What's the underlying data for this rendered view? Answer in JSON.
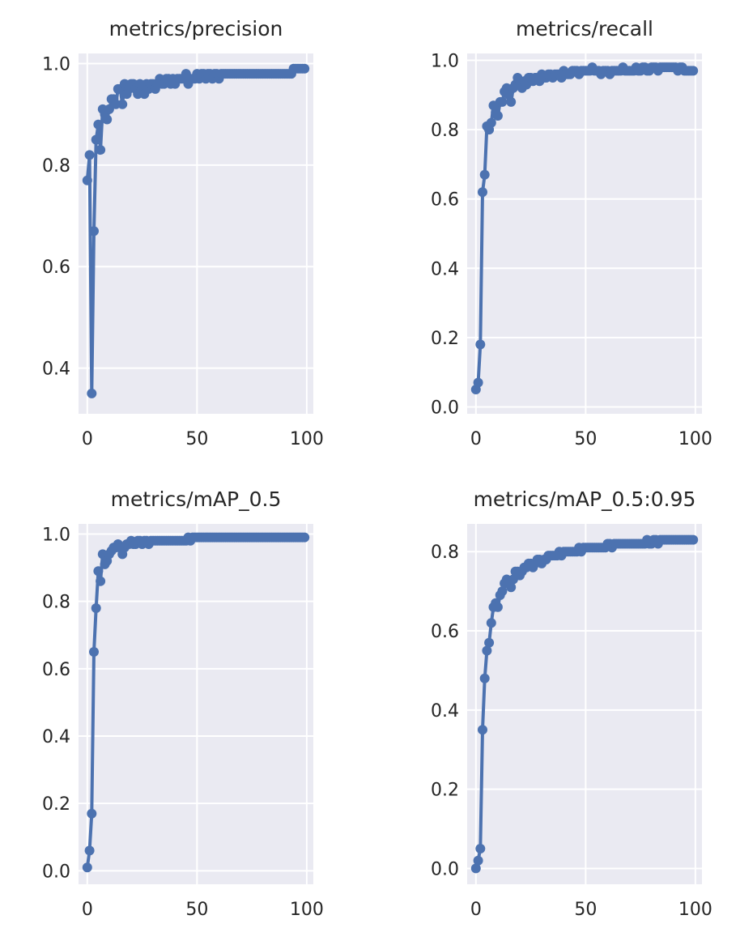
{
  "chart_data": [
    {
      "type": "line",
      "title": "metrics/precision",
      "xlabel": "",
      "ylabel": "",
      "xlim": [
        -4,
        103
      ],
      "ylim": [
        0.31,
        1.02
      ],
      "xticks": [
        0,
        50,
        100
      ],
      "yticks": [
        0.4,
        0.6,
        0.8,
        1.0
      ],
      "ytick_labels": [
        "0.4",
        "0.6",
        "0.8",
        "1.0"
      ],
      "grid": true,
      "series": [
        {
          "color": "#4c72b0",
          "x": [
            0,
            1,
            2,
            3,
            4,
            5,
            6,
            7,
            8,
            9,
            10,
            11,
            12,
            13,
            14,
            15,
            16,
            17,
            18,
            19,
            20,
            21,
            22,
            23,
            24,
            25,
            26,
            27,
            28,
            29,
            30,
            31,
            32,
            33,
            34,
            35,
            36,
            37,
            38,
            39,
            40,
            41,
            42,
            43,
            44,
            45,
            46,
            47,
            48,
            49,
            50,
            51,
            52,
            53,
            54,
            55,
            56,
            57,
            58,
            59,
            60,
            61,
            62,
            63,
            64,
            65,
            66,
            67,
            68,
            69,
            70,
            71,
            72,
            73,
            74,
            75,
            76,
            77,
            78,
            79,
            80,
            81,
            82,
            83,
            84,
            85,
            86,
            87,
            88,
            89,
            90,
            91,
            92,
            93,
            94,
            95,
            96,
            97,
            98,
            99
          ],
          "y": [
            0.77,
            0.82,
            0.35,
            0.67,
            0.85,
            0.88,
            0.83,
            0.91,
            0.9,
            0.89,
            0.91,
            0.93,
            0.93,
            0.92,
            0.95,
            0.95,
            0.92,
            0.96,
            0.94,
            0.95,
            0.96,
            0.96,
            0.95,
            0.94,
            0.96,
            0.95,
            0.94,
            0.96,
            0.95,
            0.96,
            0.96,
            0.95,
            0.96,
            0.97,
            0.96,
            0.96,
            0.97,
            0.97,
            0.96,
            0.97,
            0.96,
            0.97,
            0.97,
            0.97,
            0.97,
            0.98,
            0.96,
            0.97,
            0.97,
            0.97,
            0.98,
            0.97,
            0.98,
            0.98,
            0.97,
            0.98,
            0.98,
            0.97,
            0.98,
            0.98,
            0.97,
            0.98,
            0.98,
            0.98,
            0.98,
            0.98,
            0.98,
            0.98,
            0.98,
            0.98,
            0.98,
            0.98,
            0.98,
            0.98,
            0.98,
            0.98,
            0.98,
            0.98,
            0.98,
            0.98,
            0.98,
            0.98,
            0.98,
            0.98,
            0.98,
            0.98,
            0.98,
            0.98,
            0.98,
            0.98,
            0.98,
            0.98,
            0.98,
            0.98,
            0.99,
            0.99,
            0.99,
            0.99,
            0.99,
            0.99
          ]
        }
      ]
    },
    {
      "type": "line",
      "title": "metrics/recall",
      "xlabel": "",
      "ylabel": "",
      "xlim": [
        -4,
        103
      ],
      "ylim": [
        -0.02,
        1.02
      ],
      "xticks": [
        0,
        50,
        100
      ],
      "yticks": [
        0.0,
        0.2,
        0.4,
        0.6,
        0.8,
        1.0
      ],
      "ytick_labels": [
        "0.0",
        "0.2",
        "0.4",
        "0.6",
        "0.8",
        "1.0"
      ],
      "grid": true,
      "series": [
        {
          "color": "#4c72b0",
          "x": [
            0,
            1,
            2,
            3,
            4,
            5,
            6,
            7,
            8,
            9,
            10,
            11,
            12,
            13,
            14,
            15,
            16,
            17,
            18,
            19,
            20,
            21,
            22,
            23,
            24,
            25,
            26,
            27,
            28,
            29,
            30,
            31,
            32,
            33,
            34,
            35,
            36,
            37,
            38,
            39,
            40,
            41,
            42,
            43,
            44,
            45,
            46,
            47,
            48,
            49,
            50,
            51,
            52,
            53,
            54,
            55,
            56,
            57,
            58,
            59,
            60,
            61,
            62,
            63,
            64,
            65,
            66,
            67,
            68,
            69,
            70,
            71,
            72,
            73,
            74,
            75,
            76,
            77,
            78,
            79,
            80,
            81,
            82,
            83,
            84,
            85,
            86,
            87,
            88,
            89,
            90,
            91,
            92,
            93,
            94,
            95,
            96,
            97,
            98,
            99
          ],
          "y": [
            0.05,
            0.07,
            0.18,
            0.62,
            0.67,
            0.81,
            0.8,
            0.82,
            0.87,
            0.85,
            0.84,
            0.88,
            0.88,
            0.91,
            0.92,
            0.9,
            0.88,
            0.92,
            0.93,
            0.95,
            0.93,
            0.92,
            0.94,
            0.93,
            0.95,
            0.95,
            0.94,
            0.95,
            0.95,
            0.94,
            0.96,
            0.95,
            0.95,
            0.96,
            0.96,
            0.95,
            0.96,
            0.96,
            0.96,
            0.95,
            0.97,
            0.96,
            0.96,
            0.96,
            0.97,
            0.97,
            0.97,
            0.96,
            0.97,
            0.97,
            0.97,
            0.97,
            0.97,
            0.98,
            0.97,
            0.97,
            0.97,
            0.96,
            0.97,
            0.97,
            0.97,
            0.96,
            0.97,
            0.97,
            0.97,
            0.97,
            0.97,
            0.98,
            0.97,
            0.97,
            0.97,
            0.97,
            0.97,
            0.98,
            0.97,
            0.97,
            0.98,
            0.98,
            0.97,
            0.97,
            0.98,
            0.98,
            0.98,
            0.97,
            0.98,
            0.98,
            0.98,
            0.98,
            0.98,
            0.98,
            0.98,
            0.98,
            0.97,
            0.98,
            0.98,
            0.97,
            0.97,
            0.97,
            0.97,
            0.97
          ]
        }
      ]
    },
    {
      "type": "line",
      "title": "metrics/mAP_0.5",
      "xlabel": "",
      "ylabel": "",
      "xlim": [
        -4,
        103
      ],
      "ylim": [
        -0.04,
        1.03
      ],
      "xticks": [
        0,
        50,
        100
      ],
      "yticks": [
        0.0,
        0.2,
        0.4,
        0.6,
        0.8,
        1.0
      ],
      "ytick_labels": [
        "0.0",
        "0.2",
        "0.4",
        "0.6",
        "0.8",
        "1.0"
      ],
      "grid": true,
      "series": [
        {
          "color": "#4c72b0",
          "x": [
            0,
            1,
            2,
            3,
            4,
            5,
            6,
            7,
            8,
            9,
            10,
            11,
            12,
            13,
            14,
            15,
            16,
            17,
            18,
            19,
            20,
            21,
            22,
            23,
            24,
            25,
            26,
            27,
            28,
            29,
            30,
            31,
            32,
            33,
            34,
            35,
            36,
            37,
            38,
            39,
            40,
            41,
            42,
            43,
            44,
            45,
            46,
            47,
            48,
            49,
            50,
            51,
            52,
            53,
            54,
            55,
            56,
            57,
            58,
            59,
            60,
            61,
            62,
            63,
            64,
            65,
            66,
            67,
            68,
            69,
            70,
            71,
            72,
            73,
            74,
            75,
            76,
            77,
            78,
            79,
            80,
            81,
            82,
            83,
            84,
            85,
            86,
            87,
            88,
            89,
            90,
            91,
            92,
            93,
            94,
            95,
            96,
            97,
            98,
            99
          ],
          "y": [
            0.01,
            0.06,
            0.17,
            0.65,
            0.78,
            0.89,
            0.86,
            0.94,
            0.91,
            0.92,
            0.94,
            0.95,
            0.96,
            0.96,
            0.97,
            0.96,
            0.94,
            0.96,
            0.97,
            0.97,
            0.98,
            0.97,
            0.97,
            0.98,
            0.98,
            0.97,
            0.98,
            0.98,
            0.97,
            0.98,
            0.98,
            0.98,
            0.98,
            0.98,
            0.98,
            0.98,
            0.98,
            0.98,
            0.98,
            0.98,
            0.98,
            0.98,
            0.98,
            0.98,
            0.98,
            0.98,
            0.99,
            0.98,
            0.99,
            0.99,
            0.99,
            0.99,
            0.99,
            0.99,
            0.99,
            0.99,
            0.99,
            0.99,
            0.99,
            0.99,
            0.99,
            0.99,
            0.99,
            0.99,
            0.99,
            0.99,
            0.99,
            0.99,
            0.99,
            0.99,
            0.99,
            0.99,
            0.99,
            0.99,
            0.99,
            0.99,
            0.99,
            0.99,
            0.99,
            0.99,
            0.99,
            0.99,
            0.99,
            0.99,
            0.99,
            0.99,
            0.99,
            0.99,
            0.99,
            0.99,
            0.99,
            0.99,
            0.99,
            0.99,
            0.99,
            0.99,
            0.99,
            0.99,
            0.99,
            0.99
          ]
        }
      ]
    },
    {
      "type": "line",
      "title": "metrics/mAP_0.5:0.95",
      "xlabel": "",
      "ylabel": "",
      "xlim": [
        -4,
        103
      ],
      "ylim": [
        -0.04,
        0.87
      ],
      "xticks": [
        0,
        50,
        100
      ],
      "yticks": [
        0.0,
        0.2,
        0.4,
        0.6,
        0.8
      ],
      "ytick_labels": [
        "0.0",
        "0.2",
        "0.4",
        "0.6",
        "0.8"
      ],
      "grid": true,
      "series": [
        {
          "color": "#4c72b0",
          "x": [
            0,
            1,
            2,
            3,
            4,
            5,
            6,
            7,
            8,
            9,
            10,
            11,
            12,
            13,
            14,
            15,
            16,
            17,
            18,
            19,
            20,
            21,
            22,
            23,
            24,
            25,
            26,
            27,
            28,
            29,
            30,
            31,
            32,
            33,
            34,
            35,
            36,
            37,
            38,
            39,
            40,
            41,
            42,
            43,
            44,
            45,
            46,
            47,
            48,
            49,
            50,
            51,
            52,
            53,
            54,
            55,
            56,
            57,
            58,
            59,
            60,
            61,
            62,
            63,
            64,
            65,
            66,
            67,
            68,
            69,
            70,
            71,
            72,
            73,
            74,
            75,
            76,
            77,
            78,
            79,
            80,
            81,
            82,
            83,
            84,
            85,
            86,
            87,
            88,
            89,
            90,
            91,
            92,
            93,
            94,
            95,
            96,
            97,
            98,
            99
          ],
          "y": [
            0.0,
            0.02,
            0.05,
            0.35,
            0.48,
            0.55,
            0.57,
            0.62,
            0.66,
            0.67,
            0.66,
            0.69,
            0.7,
            0.72,
            0.73,
            0.72,
            0.71,
            0.73,
            0.75,
            0.75,
            0.74,
            0.75,
            0.76,
            0.76,
            0.77,
            0.77,
            0.76,
            0.77,
            0.78,
            0.78,
            0.77,
            0.78,
            0.78,
            0.79,
            0.79,
            0.79,
            0.79,
            0.79,
            0.8,
            0.79,
            0.8,
            0.8,
            0.8,
            0.8,
            0.8,
            0.8,
            0.8,
            0.81,
            0.8,
            0.81,
            0.81,
            0.81,
            0.81,
            0.81,
            0.81,
            0.81,
            0.81,
            0.81,
            0.81,
            0.81,
            0.82,
            0.82,
            0.81,
            0.82,
            0.82,
            0.82,
            0.82,
            0.82,
            0.82,
            0.82,
            0.82,
            0.82,
            0.82,
            0.82,
            0.82,
            0.82,
            0.82,
            0.82,
            0.83,
            0.82,
            0.82,
            0.83,
            0.83,
            0.82,
            0.83,
            0.83,
            0.83,
            0.83,
            0.83,
            0.83,
            0.83,
            0.83,
            0.83,
            0.83,
            0.83,
            0.83,
            0.83,
            0.83,
            0.83,
            0.83
          ]
        }
      ]
    }
  ]
}
